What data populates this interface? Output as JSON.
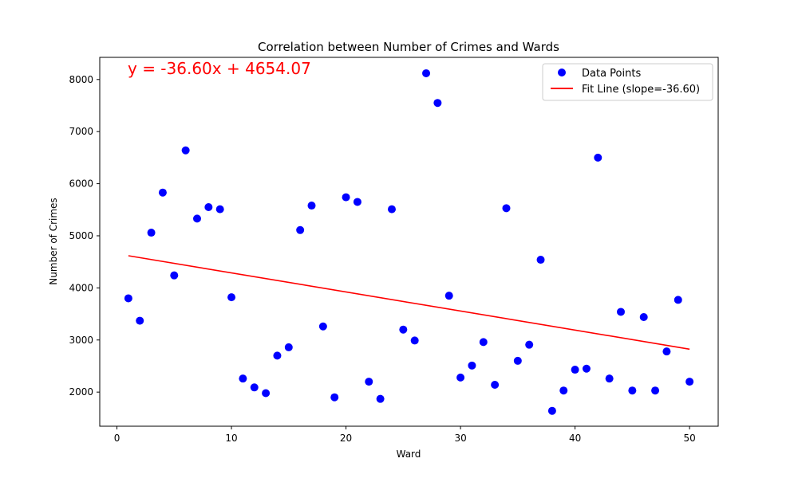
{
  "chart_data": {
    "type": "scatter",
    "title": "Correlation between Number of Crimes and Wards",
    "xlabel": "Ward",
    "ylabel": "Number of Crimes",
    "xlim": [
      -1.5,
      52.5
    ],
    "ylim": [
      1345,
      8425
    ],
    "xticks": [
      0,
      10,
      20,
      30,
      40,
      50
    ],
    "yticks": [
      2000,
      3000,
      4000,
      5000,
      6000,
      7000,
      8000
    ],
    "grid": false,
    "legend_position": "top-right",
    "annotation": "y = -36.60x + 4654.07",
    "series": [
      {
        "name": "Data Points",
        "kind": "scatter",
        "color": "#0000ff",
        "x": [
          1,
          2,
          3,
          4,
          5,
          6,
          7,
          8,
          9,
          10,
          11,
          12,
          13,
          14,
          15,
          16,
          17,
          18,
          19,
          20,
          21,
          22,
          23,
          24,
          25,
          26,
          27,
          28,
          29,
          30,
          31,
          32,
          33,
          34,
          35,
          36,
          37,
          38,
          39,
          40,
          41,
          42,
          43,
          44,
          45,
          46,
          47,
          48,
          49,
          50
        ],
        "y": [
          3800,
          3370,
          5060,
          5830,
          4240,
          6640,
          5330,
          5550,
          5510,
          3820,
          2260,
          2090,
          1980,
          2700,
          2860,
          5110,
          5580,
          3260,
          1900,
          5740,
          5650,
          2200,
          1870,
          5510,
          3200,
          2990,
          8120,
          7550,
          3850,
          2280,
          2510,
          2960,
          2140,
          5530,
          2600,
          2910,
          4540,
          1640,
          2030,
          2430,
          2450,
          6500,
          2260,
          3540,
          2030,
          3440,
          2030,
          2780,
          3770,
          2200
        ]
      },
      {
        "name": "Fit Line (slope=-36.60)",
        "kind": "line",
        "color": "#ff0000",
        "slope": -36.6,
        "intercept": 4654.07,
        "x_range": [
          1,
          50
        ]
      }
    ]
  }
}
